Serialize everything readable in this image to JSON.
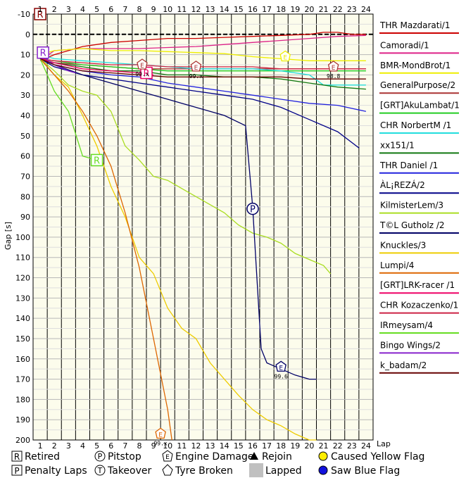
{
  "chart_data": {
    "type": "line",
    "title": "",
    "xlabel": "Lap",
    "ylabel": "Gap [s]",
    "xlim": [
      1,
      24
    ],
    "ylim": [
      -10,
      200
    ],
    "y_inverted": true,
    "x_ticks": [
      "1",
      "2",
      "3",
      "4",
      "5",
      "6",
      "7",
      "8",
      "9",
      "10",
      "11",
      "12",
      "13",
      "14",
      "15",
      "16",
      "17",
      "18",
      "19",
      "20",
      "21",
      "22",
      "23",
      "24"
    ],
    "y_ticks": [
      "-10",
      "0",
      "10",
      "20",
      "30",
      "40",
      "50",
      "60",
      "70",
      "80",
      "90",
      "100",
      "110",
      "120",
      "130",
      "140",
      "150",
      "160",
      "170",
      "180",
      "190",
      "200"
    ],
    "plot_background": "#fcfcec",
    "grid": true,
    "legend_position": "right",
    "series": [
      {
        "name": "THR Mazdarati/1",
        "color": "#cc0000",
        "x": [
          1,
          2,
          4,
          6,
          8,
          10,
          12,
          14,
          16,
          18,
          20,
          21,
          22,
          23,
          24
        ],
        "y": [
          13,
          10,
          6,
          4,
          3,
          2,
          2,
          1.5,
          1,
          0.5,
          0,
          -1,
          -1,
          0,
          0
        ]
      },
      {
        "name": "Camoradi/1",
        "color": "#dd2288",
        "x": [
          1,
          2,
          4,
          6,
          8,
          10,
          12,
          14,
          16,
          18,
          20,
          22,
          24
        ],
        "y": [
          13,
          8,
          7,
          7,
          7,
          6.5,
          6,
          5,
          4,
          3,
          2,
          1,
          0.5
        ]
      },
      {
        "name": "BMR-MondBrot/1",
        "color": "#eeee00",
        "x": [
          1,
          2,
          4,
          6,
          8,
          10,
          12,
          14,
          16,
          18,
          20,
          22,
          24
        ],
        "y": [
          10,
          8,
          7,
          8,
          8,
          8.5,
          9,
          9.5,
          11,
          12,
          13,
          13,
          13
        ]
      },
      {
        "name": "GeneralPurpose/2",
        "color": "#aa3333",
        "x": [
          1,
          2,
          4,
          6,
          8,
          10,
          12,
          14,
          16,
          18,
          20,
          22,
          24
        ],
        "y": [
          12,
          14,
          15,
          16,
          17,
          17,
          17,
          17,
          17,
          17,
          17,
          17,
          17
        ]
      },
      {
        "name": "[GRT]AkuLambat/1",
        "color": "#22cc22",
        "x": [
          1,
          2,
          4,
          6,
          8,
          10,
          12,
          14,
          16,
          18,
          20,
          22,
          24
        ],
        "y": [
          12,
          13,
          15,
          16,
          17,
          18,
          18,
          18,
          18,
          18,
          18,
          18,
          18
        ]
      },
      {
        "name": "CHR NorbertM /1",
        "color": "#22dddd",
        "x": [
          1,
          2,
          4,
          6,
          8,
          10,
          12,
          14,
          16,
          18,
          20,
          21,
          22,
          24
        ],
        "y": [
          10,
          12,
          13,
          14,
          15,
          16,
          17,
          17,
          17,
          18,
          20,
          25,
          25,
          25
        ]
      },
      {
        "name": "xx151/1",
        "color": "#117711",
        "x": [
          1,
          2,
          4,
          6,
          8,
          10,
          12,
          14,
          16,
          18,
          20,
          22,
          24
        ],
        "y": [
          12,
          14,
          16,
          18,
          18,
          20,
          20,
          21,
          21,
          22,
          24,
          26,
          27
        ]
      },
      {
        "name": "THR Daniel /1",
        "color": "#2222dd",
        "x": [
          1,
          2,
          4,
          6,
          8,
          10,
          12,
          14,
          16,
          18,
          20,
          22,
          24
        ],
        "y": [
          12,
          15,
          18,
          20,
          21,
          24,
          26,
          28,
          30,
          32,
          34,
          35,
          38
        ]
      },
      {
        "name": "ÀL¡REZÁ/2",
        "color": "#000088",
        "x": [
          1,
          2,
          4,
          6,
          8,
          10,
          12,
          14,
          16,
          18,
          20,
          22,
          23.5
        ],
        "y": [
          12,
          16,
          20,
          22,
          24,
          26,
          28,
          30,
          32,
          36,
          42,
          48,
          56
        ]
      },
      {
        "name": "KilmisterLem/3",
        "color": "#aadd22",
        "x": [
          1,
          2,
          3,
          4,
          5,
          6,
          7,
          8,
          9,
          10,
          11,
          12,
          13,
          14,
          15,
          16,
          17,
          18,
          19,
          20,
          21,
          21.5
        ],
        "y": [
          12,
          18,
          25,
          28,
          30,
          38,
          55,
          62,
          70,
          72,
          76,
          80,
          84,
          88,
          94,
          98,
          100,
          103,
          108,
          111,
          114,
          118
        ]
      },
      {
        "name": "T©L Gutholz /2",
        "color": "#000066",
        "x": [
          1,
          2,
          4,
          6,
          8,
          10,
          12,
          14,
          15.5,
          16,
          16.6,
          17,
          18,
          19,
          20,
          20.5
        ],
        "y": [
          12,
          15,
          20,
          24,
          28,
          32,
          36,
          40,
          45,
          85,
          155,
          162,
          165,
          168,
          170,
          170
        ]
      },
      {
        "name": "Knuckles/3",
        "color": "#eecc00",
        "x": [
          1,
          2,
          3,
          4,
          5,
          6,
          7,
          8,
          9,
          10,
          11,
          12,
          13,
          14,
          15,
          16,
          17,
          18,
          19,
          20,
          20.5
        ],
        "y": [
          12,
          20,
          26,
          40,
          55,
          75,
          90,
          110,
          118,
          135,
          145,
          150,
          162,
          170,
          178,
          185,
          190,
          193,
          197,
          200,
          200
        ]
      },
      {
        "name": "Lumpi/4",
        "color": "#dd6600",
        "x": [
          1,
          2,
          3,
          4,
          5,
          6,
          7,
          8,
          9,
          10,
          10.3
        ],
        "y": [
          12,
          20,
          28,
          38,
          50,
          65,
          88,
          115,
          150,
          185,
          200
        ]
      },
      {
        "name": "[GRT]LRK-racer /1",
        "color": "#ee0066",
        "x": [
          1,
          2,
          4,
          6,
          8,
          9
        ],
        "y": [
          12,
          14,
          17,
          18,
          19,
          20
        ]
      },
      {
        "name": "CHR Kozaczenko/1",
        "color": "#cc2244",
        "x": [
          1,
          2,
          4,
          6,
          8,
          10,
          12,
          14,
          16,
          18,
          20,
          22,
          24
        ],
        "y": [
          12,
          13,
          14,
          15,
          15,
          16,
          16,
          16,
          16,
          17,
          17,
          17,
          17
        ]
      },
      {
        "name": "IRmeysam/4",
        "color": "#66dd22",
        "x": [
          1,
          2,
          3,
          4,
          5
        ],
        "y": [
          12,
          28,
          38,
          60,
          62
        ]
      },
      {
        "name": "Bingo Wings/2",
        "color": "#8822cc",
        "x": [
          1,
          2,
          3,
          3.5
        ],
        "y": [
          10,
          15,
          18,
          19
        ]
      },
      {
        "name": "k_badam/2",
        "color": "#660000",
        "x": [
          1,
          2,
          4,
          6,
          8,
          10,
          12,
          14,
          16,
          18,
          20,
          22,
          24
        ],
        "y": [
          12,
          15,
          18,
          19,
          20,
          21,
          21,
          21,
          21,
          21,
          22,
          22,
          22
        ]
      }
    ],
    "markers": [
      {
        "type": "R",
        "lap": 1,
        "gap": -10,
        "color": "#880000"
      },
      {
        "type": "R",
        "lap": 1.2,
        "gap": 9,
        "color": "#8822cc"
      },
      {
        "type": "R",
        "lap": 8.5,
        "gap": 19,
        "color": "#ee0066"
      },
      {
        "type": "R",
        "lap": 5,
        "gap": 62,
        "color": "#66dd22"
      },
      {
        "type": "P",
        "lap": 16,
        "gap": 86,
        "color": "#000066"
      },
      {
        "type": "E",
        "lap": 8.2,
        "gap": 15,
        "color": "#aa3333",
        "label": "99.x"
      },
      {
        "type": "E",
        "lap": 12,
        "gap": 16,
        "color": "#aa3333",
        "label": "99.x"
      },
      {
        "type": "E",
        "lap": 18.3,
        "gap": 11,
        "color": "#eeee00",
        "label": ""
      },
      {
        "type": "E",
        "lap": 21.7,
        "gap": 16,
        "color": "#aa3333",
        "label": "98.8"
      },
      {
        "type": "E",
        "lap": 18,
        "gap": 164,
        "color": "#000066",
        "label": "99.6"
      },
      {
        "type": "E",
        "lap": 9.5,
        "gap": 197,
        "color": "#dd6600",
        "label": "99.x"
      }
    ]
  },
  "key": [
    {
      "symbol": "R",
      "label": "Retired"
    },
    {
      "symbol": "P",
      "label": "Pitstop"
    },
    {
      "symbol": "E",
      "label": "Engine Damage"
    },
    {
      "symbol": "triangle",
      "label": "Rejoin"
    },
    {
      "symbol": "yellow-dot",
      "label": "Caused Yellow Flag"
    },
    {
      "symbol": "P",
      "label": "Penalty Laps"
    },
    {
      "symbol": "T",
      "label": "Takeover"
    },
    {
      "symbol": "tyre",
      "label": "Tyre Broken"
    },
    {
      "symbol": "grey-square",
      "label": "Lapped"
    },
    {
      "symbol": "blue-dot",
      "label": "Saw Blue Flag"
    }
  ]
}
